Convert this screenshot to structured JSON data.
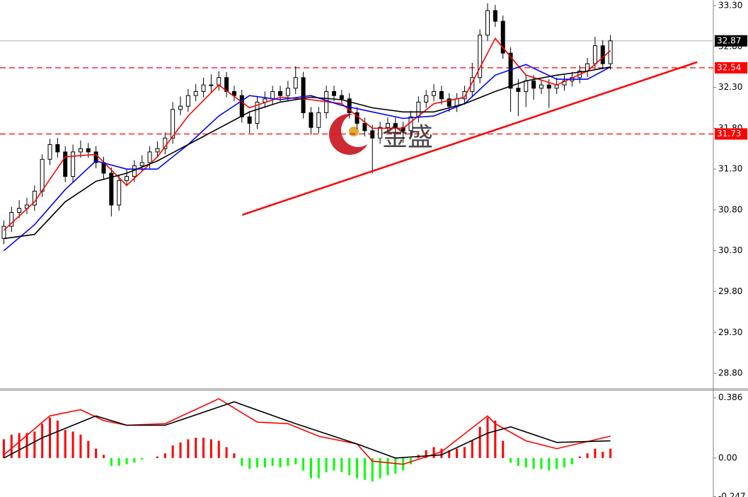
{
  "chart_data": [
    {
      "type": "candlestick",
      "watermark": "金盛",
      "ylim": [
        28.61,
        33.37
      ],
      "xlim": [
        -0.5,
        92.4
      ],
      "yticks": [
        {
          "value": 33.3,
          "label": "33.30"
        },
        {
          "value": 32.8,
          "label": "32.80"
        },
        {
          "value": 32.3,
          "label": "32.30"
        },
        {
          "value": 31.8,
          "label": "31.80"
        },
        {
          "value": 31.3,
          "label": "31.30"
        },
        {
          "value": 30.8,
          "label": "30.80"
        },
        {
          "value": 30.3,
          "label": "30.30"
        },
        {
          "value": 29.8,
          "label": "29.80"
        },
        {
          "value": 29.3,
          "label": "29.30"
        },
        {
          "value": 28.8,
          "label": "28.80"
        }
      ],
      "up_color": "#ffffff",
      "down_color": "#000000",
      "outline_color": "#000000",
      "open": [
        30.45,
        30.6,
        30.77,
        30.82,
        30.86,
        31.03,
        31.42,
        31.6,
        31.51,
        31.21,
        31.51,
        31.55,
        31.51,
        31.38,
        31.25,
        30.86,
        31.16,
        31.21,
        31.34,
        31.38,
        31.51,
        31.55,
        31.68,
        32.03,
        32.07,
        32.2,
        32.25,
        32.33,
        32.33,
        32.42,
        32.25,
        32.2,
        31.94,
        31.86,
        32.12,
        32.16,
        32.25,
        32.2,
        32.29,
        32.42,
        31.99,
        31.81,
        31.99,
        32.25,
        32.2,
        32.16,
        31.99,
        31.86,
        31.77,
        31.68,
        31.81,
        31.86,
        31.81,
        31.77,
        31.94,
        32.12,
        32.2,
        32.25,
        32.16,
        32.07,
        32.16,
        32.25,
        32.42,
        32.94,
        33.24,
        33.11,
        32.72,
        32.29,
        32.25,
        32.38,
        32.29,
        32.33,
        32.29,
        32.33,
        32.38,
        32.42,
        32.5,
        32.59,
        32.81,
        32.59
      ],
      "high": [
        30.67,
        30.84,
        30.92,
        30.95,
        31.1,
        31.48,
        31.67,
        31.68,
        31.58,
        31.6,
        31.65,
        31.62,
        31.58,
        31.45,
        31.32,
        31.23,
        31.3,
        31.41,
        31.47,
        31.58,
        31.64,
        31.75,
        32.12,
        32.19,
        32.28,
        32.34,
        32.42,
        32.46,
        32.5,
        32.49,
        32.32,
        32.27,
        32.01,
        32.19,
        32.25,
        32.32,
        32.32,
        32.38,
        32.56,
        32.49,
        32.06,
        32.06,
        32.32,
        32.32,
        32.27,
        32.23,
        32.06,
        31.93,
        31.84,
        31.88,
        31.93,
        31.93,
        31.88,
        32.01,
        32.19,
        32.27,
        32.34,
        32.32,
        32.23,
        32.23,
        32.32,
        32.6,
        33.01,
        33.33,
        33.31,
        33.18,
        32.79,
        32.4,
        32.45,
        32.45,
        32.4,
        32.4,
        32.42,
        32.45,
        32.49,
        32.57,
        32.66,
        32.92,
        32.88,
        32.94
      ],
      "low": [
        30.38,
        30.53,
        30.7,
        30.75,
        30.79,
        30.96,
        31.35,
        31.44,
        31.14,
        31.14,
        31.44,
        31.44,
        31.31,
        31.18,
        30.72,
        30.79,
        31.09,
        31.14,
        31.27,
        31.31,
        31.44,
        31.48,
        31.61,
        31.96,
        32.0,
        32.13,
        32.18,
        32.24,
        32.26,
        32.18,
        32.13,
        31.87,
        31.74,
        31.79,
        32.05,
        32.09,
        32.13,
        32.13,
        32.22,
        31.92,
        31.72,
        31.74,
        31.92,
        32.13,
        32.09,
        31.92,
        31.79,
        31.7,
        31.25,
        31.61,
        31.74,
        31.74,
        31.62,
        31.7,
        31.87,
        32.05,
        32.13,
        32.09,
        32.0,
        32.0,
        32.09,
        32.18,
        32.35,
        32.87,
        33.04,
        32.65,
        32.0,
        31.95,
        32.06,
        32.15,
        32.22,
        32.05,
        32.22,
        32.26,
        32.31,
        32.35,
        32.43,
        32.52,
        32.52,
        32.52
      ],
      "close": [
        30.6,
        30.77,
        30.82,
        30.86,
        31.03,
        31.42,
        31.6,
        31.51,
        31.21,
        31.51,
        31.55,
        31.51,
        31.38,
        31.25,
        30.86,
        31.16,
        31.21,
        31.34,
        31.38,
        31.51,
        31.55,
        31.68,
        32.03,
        32.07,
        32.2,
        32.25,
        32.33,
        32.33,
        32.42,
        32.25,
        32.2,
        31.94,
        31.86,
        32.12,
        32.16,
        32.25,
        32.2,
        32.29,
        32.42,
        31.99,
        31.81,
        31.99,
        32.25,
        32.2,
        32.16,
        31.99,
        31.86,
        31.77,
        31.68,
        31.81,
        31.86,
        31.81,
        31.77,
        31.94,
        32.12,
        32.2,
        32.25,
        32.16,
        32.07,
        32.16,
        32.25,
        32.42,
        32.94,
        33.24,
        33.11,
        32.72,
        32.29,
        32.25,
        32.38,
        32.29,
        32.33,
        32.29,
        32.33,
        32.38,
        32.42,
        32.5,
        32.59,
        32.81,
        32.59,
        32.87
      ],
      "series": [
        {
          "color": "#ff0000",
          "x": [
            0,
            4,
            8,
            12,
            16,
            20,
            24,
            28,
            32,
            36,
            40,
            44,
            48,
            52,
            56,
            60,
            64,
            68,
            72,
            76,
            79
          ],
          "values": [
            30.55,
            30.9,
            31.45,
            31.48,
            31.1,
            31.45,
            31.95,
            32.33,
            32.05,
            32.18,
            32.15,
            32.1,
            31.8,
            31.8,
            32.1,
            32.18,
            32.9,
            32.45,
            32.33,
            32.5,
            32.75
          ]
        },
        {
          "color": "#0000ff",
          "x": [
            0,
            4,
            8,
            12,
            16,
            20,
            24,
            28,
            32,
            36,
            40,
            44,
            48,
            52,
            56,
            60,
            64,
            68,
            72,
            76,
            79
          ],
          "values": [
            30.3,
            30.62,
            31.05,
            31.4,
            31.3,
            31.3,
            31.6,
            31.95,
            32.2,
            32.15,
            32.2,
            32.08,
            32.0,
            31.92,
            31.95,
            32.1,
            32.45,
            32.58,
            32.4,
            32.4,
            32.55
          ]
        },
        {
          "color": "#000000",
          "x": [
            0,
            4,
            8,
            12,
            16,
            20,
            24,
            28,
            32,
            36,
            40,
            44,
            48,
            52,
            56,
            60,
            64,
            68,
            72,
            76,
            79
          ],
          "values": [
            30.45,
            30.5,
            30.9,
            31.15,
            31.25,
            31.4,
            31.6,
            31.8,
            32.0,
            32.12,
            32.18,
            32.15,
            32.05,
            32.0,
            32.0,
            32.1,
            32.25,
            32.38,
            32.45,
            32.5,
            32.55
          ]
        }
      ],
      "trendline": {
        "color": "#ff0000",
        "x": [
          31.06,
          90.3
        ],
        "values": [
          30.74,
          32.61
        ]
      },
      "hlines": [
        {
          "value": 32.87,
          "label": "32.87",
          "style": "solid",
          "color": "#c0c0c0",
          "label_color": "#000000"
        },
        {
          "value": 32.54,
          "label": "32.54",
          "style": "dashed",
          "color": "#ff0000",
          "label_color": "#ff0000"
        },
        {
          "value": 31.73,
          "label": "31.73",
          "style": "dashed",
          "color": "#ff0000",
          "label_color": "#ff0000"
        }
      ]
    },
    {
      "type": "macd",
      "ylim": [
        -0.25,
        0.43
      ],
      "xlim": [
        -0.5,
        92.4
      ],
      "yticks": [
        0.386,
        {
          "value": 0,
          "label": "0.00"
        },
        -0.247
      ],
      "up_color": "#ff0000",
      "down_color": "#00ff00",
      "values": [
        0.12,
        0.15,
        0.16,
        0.16,
        0.17,
        0.22,
        0.26,
        0.24,
        0.18,
        0.17,
        0.15,
        0.11,
        0.06,
        0.02,
        -0.05,
        -0.05,
        -0.04,
        -0.03,
        -0.01,
        0.0,
        0.01,
        0.03,
        0.08,
        0.1,
        0.12,
        0.13,
        0.13,
        0.12,
        0.11,
        0.07,
        0.03,
        -0.05,
        -0.07,
        -0.06,
        -0.06,
        -0.05,
        -0.06,
        -0.05,
        -0.04,
        -0.08,
        -0.13,
        -0.13,
        -0.09,
        -0.08,
        -0.09,
        -0.11,
        -0.13,
        -0.14,
        -0.15,
        -0.13,
        -0.11,
        -0.1,
        -0.08,
        -0.04,
        0.02,
        0.05,
        0.07,
        0.06,
        0.05,
        0.06,
        0.07,
        0.11,
        0.2,
        0.26,
        0.24,
        0.11,
        -0.03,
        -0.05,
        -0.06,
        -0.07,
        -0.07,
        -0.08,
        -0.07,
        -0.06,
        -0.04,
        0.01,
        0.03,
        0.06,
        0.04,
        0.06
      ],
      "series": [
        {
          "color": "#ff0000",
          "x": [
            0,
            6,
            10,
            13,
            16,
            21,
            28,
            33,
            37,
            41,
            46,
            48,
            52,
            57,
            63,
            64,
            68,
            72,
            79
          ],
          "values": [
            0.02,
            0.27,
            0.31,
            0.24,
            0.21,
            0.22,
            0.38,
            0.23,
            0.22,
            0.14,
            0.09,
            -0.02,
            -0.04,
            0.04,
            0.27,
            0.22,
            0.11,
            0.06,
            0.14
          ]
        },
        {
          "color": "#000000",
          "x": [
            0,
            5,
            12,
            16,
            21,
            30,
            38,
            46,
            51,
            57,
            63,
            66,
            72,
            79
          ],
          "values": [
            0.0,
            0.13,
            0.27,
            0.21,
            0.21,
            0.36,
            0.22,
            0.09,
            0.0,
            0.02,
            0.16,
            0.2,
            0.1,
            0.11
          ]
        }
      ]
    }
  ]
}
